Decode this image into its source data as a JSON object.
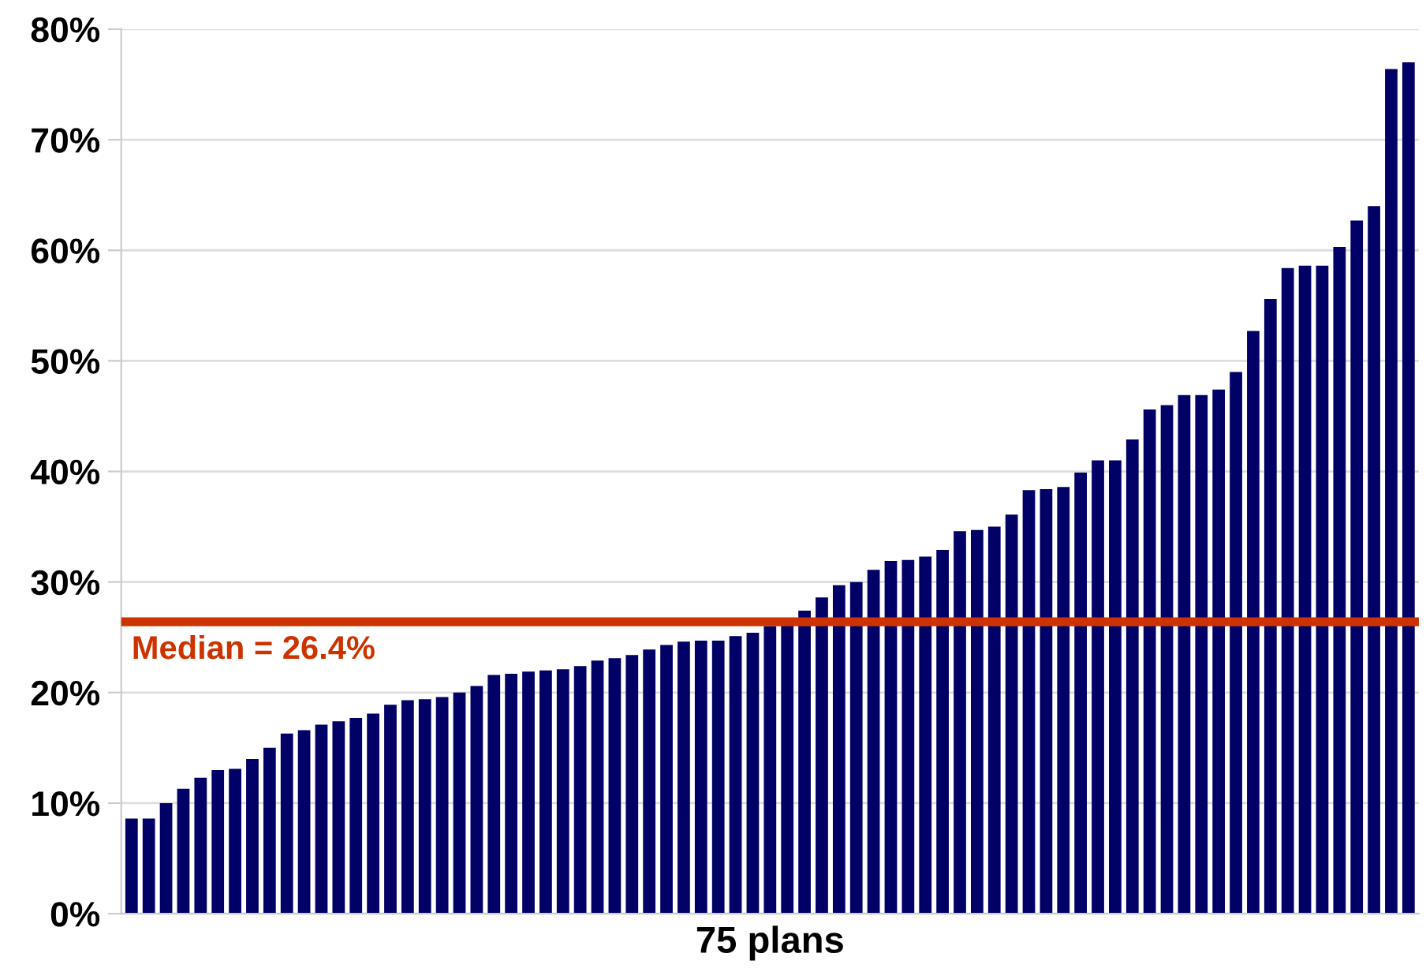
{
  "chart_data": {
    "type": "bar",
    "xlabel": "75 plans",
    "categories": [
      null,
      null,
      null,
      null,
      null,
      null,
      null,
      null,
      null,
      null,
      null,
      null,
      null,
      null,
      null,
      null,
      null,
      null,
      null,
      null,
      null,
      null,
      null,
      null,
      null,
      null,
      null,
      null,
      null,
      null,
      null,
      null,
      null,
      null,
      null,
      null,
      null,
      null,
      null,
      null,
      null,
      null,
      null,
      null,
      null,
      null,
      null,
      null,
      null,
      null,
      null,
      null,
      null,
      null,
      null,
      null,
      null,
      null,
      null,
      null,
      null,
      null,
      null,
      null,
      null,
      null,
      null,
      null,
      null,
      null,
      null,
      null,
      null,
      null,
      null
    ],
    "values": [
      8.6,
      8.6,
      10,
      11.3,
      12.3,
      13,
      13.1,
      14,
      15,
      16.3,
      16.6,
      17.1,
      17.4,
      17.7,
      18.1,
      18.9,
      19.3,
      19.4,
      19.6,
      20,
      20.6,
      21.6,
      21.7,
      21.9,
      22,
      22.1,
      22.4,
      22.9,
      23.1,
      23.4,
      23.9,
      24.3,
      24.6,
      24.7,
      24.7,
      25.1,
      25.4,
      26,
      26.4,
      27.4,
      28.6,
      29.7,
      30,
      31.1,
      31.9,
      32,
      32.3,
      32.9,
      34.6,
      34.7,
      35,
      36.1,
      38.3,
      38.4,
      38.6,
      39.9,
      41,
      41,
      42.9,
      45.6,
      46,
      46.9,
      46.9,
      47.4,
      49,
      52.7,
      55.6,
      58.4,
      58.6,
      58.6,
      60.3,
      62.7,
      64,
      76.4,
      77
    ],
    "color": "#000066",
    "ylim": [
      0,
      80
    ],
    "yticks": [
      {
        "value": 0,
        "label": "0%"
      },
      {
        "value": 10,
        "label": "10%"
      },
      {
        "value": 20,
        "label": "20%"
      },
      {
        "value": 30,
        "label": "30%"
      },
      {
        "value": 40,
        "label": "40%"
      },
      {
        "value": 50,
        "label": "50%"
      },
      {
        "value": 60,
        "label": "60%"
      },
      {
        "value": 70,
        "label": "70%"
      },
      {
        "value": 80,
        "label": "80%"
      }
    ],
    "grid": "y",
    "ref_lines": [
      {
        "axis": "y",
        "value": 26.4,
        "label": "Median = 26.4%",
        "color": "#cc3300"
      }
    ]
  }
}
